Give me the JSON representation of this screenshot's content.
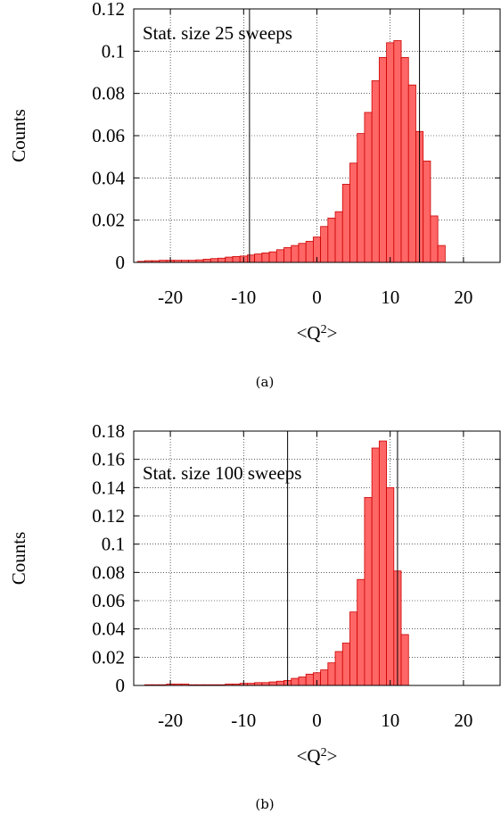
{
  "figure": {
    "background": "#ffffff",
    "bar_fill": "#ff6666",
    "bar_stroke": "#cc0000",
    "grid": "dotted",
    "captions": [
      "(a)",
      "(b)"
    ]
  },
  "chart_data": [
    {
      "type": "bar",
      "title": "",
      "annotation": "Stat. size 25 sweeps",
      "xlabel": "<Q",
      "xlabel_superscript": "2",
      "xlabel_suffix": ">",
      "ylabel": "Counts",
      "xlim": [
        -25,
        25
      ],
      "ylim": [
        0,
        0.12
      ],
      "xticks": [
        -20,
        -10,
        0,
        10,
        20
      ],
      "xtick_labels": [
        "-20",
        "-10",
        "0",
        "10",
        "20"
      ],
      "yticks": [
        0,
        0.02,
        0.04,
        0.06,
        0.08,
        0.1,
        0.12
      ],
      "ytick_labels": [
        "0",
        "0.02",
        "0.04",
        "0.06",
        "0.08",
        "0.1",
        "0.12"
      ],
      "grid": true,
      "vlines": [
        -9.2,
        14
      ],
      "bin_width": 1,
      "x": [
        -24,
        -23,
        -22,
        -21,
        -20,
        -19,
        -18,
        -17,
        -16,
        -15,
        -14,
        -13,
        -12,
        -11,
        -10,
        -9,
        -8,
        -7,
        -6,
        -5,
        -4,
        -3,
        -2,
        -1,
        0,
        1,
        2,
        3,
        4,
        5,
        6,
        7,
        8,
        9,
        10,
        11,
        12,
        13,
        14,
        15,
        16,
        17
      ],
      "values": [
        0.0005,
        0.0008,
        0.0008,
        0.001,
        0.001,
        0.001,
        0.001,
        0.001,
        0.0012,
        0.0015,
        0.0018,
        0.002,
        0.0025,
        0.0028,
        0.003,
        0.0035,
        0.004,
        0.0045,
        0.005,
        0.006,
        0.007,
        0.008,
        0.009,
        0.01,
        0.012,
        0.017,
        0.021,
        0.024,
        0.037,
        0.047,
        0.061,
        0.071,
        0.086,
        0.097,
        0.104,
        0.105,
        0.097,
        0.084,
        0.062,
        0.048,
        0.022,
        0.008
      ]
    },
    {
      "type": "bar",
      "title": "",
      "annotation": "Stat. size 100 sweeps",
      "xlabel": "<Q",
      "xlabel_superscript": "2",
      "xlabel_suffix": ">",
      "ylabel": "Counts",
      "xlim": [
        -25,
        25
      ],
      "ylim": [
        0,
        0.18
      ],
      "xticks": [
        -20,
        -10,
        0,
        10,
        20
      ],
      "xtick_labels": [
        "-20",
        "-10",
        "0",
        "10",
        "20"
      ],
      "yticks": [
        0,
        0.02,
        0.04,
        0.06,
        0.08,
        0.1,
        0.12,
        0.14,
        0.16,
        0.18
      ],
      "ytick_labels": [
        "0",
        "0.02",
        "0.04",
        "0.06",
        "0.08",
        "0.1",
        "0.12",
        "0.14",
        "0.16",
        "0.18"
      ],
      "grid": true,
      "vlines": [
        -4,
        11
      ],
      "bin_width": 1,
      "x": [
        -23,
        -22,
        -21,
        -20,
        -19,
        -18,
        -17,
        -16,
        -15,
        -14,
        -13,
        -12,
        -11,
        -10,
        -9,
        -8,
        -7,
        -6,
        -5,
        -4,
        -3,
        -2,
        -1,
        0,
        1,
        2,
        3,
        4,
        5,
        6,
        7,
        8,
        9,
        10,
        11,
        12
      ],
      "values": [
        0.0005,
        0.0005,
        0.0005,
        0.001,
        0.001,
        0.001,
        0.0005,
        0.0005,
        0.0005,
        0.0005,
        0.0005,
        0.001,
        0.001,
        0.0015,
        0.0015,
        0.002,
        0.002,
        0.0025,
        0.003,
        0.0035,
        0.005,
        0.006,
        0.008,
        0.009,
        0.011,
        0.016,
        0.024,
        0.03,
        0.052,
        0.075,
        0.133,
        0.168,
        0.173,
        0.14,
        0.081,
        0.036
      ]
    }
  ]
}
